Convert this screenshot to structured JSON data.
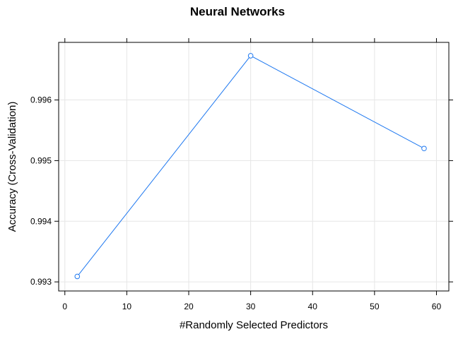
{
  "chart_data": {
    "type": "line",
    "title": "Neural Networks",
    "xlabel": "#Randomly Selected Predictors",
    "ylabel": "Accuracy (Cross-Validation)",
    "x": [
      2,
      30,
      58
    ],
    "series": [
      {
        "values": [
          0.99309,
          0.99673,
          0.9952
        ],
        "color": "#1E78F0"
      }
    ],
    "xlim": [
      -1,
      62
    ],
    "ylim": [
      0.99285,
      0.99695
    ],
    "xticks": [
      0,
      10,
      20,
      30,
      40,
      50,
      60
    ],
    "yticks": [
      0.993,
      0.994,
      0.995,
      0.996
    ],
    "xtick_labels": [
      "0",
      "10",
      "20",
      "30",
      "40",
      "50",
      "60"
    ],
    "ytick_labels": [
      "0.993",
      "0.994",
      "0.995",
      "0.996"
    ],
    "grid": true,
    "grid_color": "#E6E6E6",
    "markers": "open-circle"
  }
}
